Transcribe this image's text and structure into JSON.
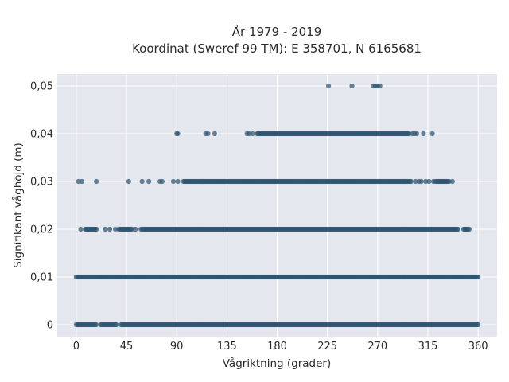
{
  "chart_data": {
    "type": "scatter",
    "title_line1": "År 1979 - 2019",
    "title_line2": "Koordinat (Sweref 99 TM): E 358701, N 6165681",
    "xlabel": "Vågriktning (grader)",
    "ylabel": "Signifikant våghöjd (m)",
    "xlim": [
      -17,
      377
    ],
    "ylim": [
      -0.0025,
      0.0525
    ],
    "xticks": [
      0,
      45,
      90,
      135,
      180,
      225,
      270,
      315,
      360
    ],
    "xtick_labels": [
      "0",
      "45",
      "90",
      "135",
      "180",
      "225",
      "270",
      "315",
      "360"
    ],
    "yticks": [
      0,
      0.01,
      0.02,
      0.03,
      0.04,
      0.05
    ],
    "ytick_labels": [
      "0",
      "0,01",
      "0,02",
      "0,03",
      "0,04",
      "0,05"
    ],
    "grid": true,
    "marker_color": "#2e5470",
    "background_color": "#e5e7ef",
    "series": [
      {
        "values_by_level": [
          {
            "y": 0,
            "x_ranges": [
              [
                0,
                18
              ],
              [
                22,
                36
              ],
              [
                40,
                360
              ]
            ],
            "x_points": []
          },
          {
            "y": 0.01,
            "x_ranges": [
              [
                0,
                360
              ]
            ],
            "x_points": []
          },
          {
            "y": 0.02,
            "x_ranges": [
              [
                8,
                18
              ],
              [
                38,
                50
              ],
              [
                58,
                342
              ],
              [
                347,
                352
              ]
            ],
            "x_points": [
              4,
              26,
              30,
              35,
              53
            ]
          },
          {
            "y": 0.03,
            "x_ranges": [
              [
                96,
                300
              ],
              [
                322,
                334
              ]
            ],
            "x_points": [
              2,
              5,
              18,
              47,
              59,
              65,
              75,
              77,
              87,
              91,
              304,
              307,
              309,
              313,
              316,
              320,
              337
            ]
          },
          {
            "y": 0.04,
            "x_ranges": [
              [
                162,
                298
              ]
            ],
            "x_points": [
              90,
              91,
              116,
              118,
              124,
              153,
              155,
              158,
              301,
              303,
              305,
              311,
              319
            ]
          },
          {
            "y": 0.05,
            "x_ranges": [],
            "x_points": [
              226,
              247,
              266,
              268,
              270,
              272
            ]
          }
        ]
      }
    ]
  }
}
